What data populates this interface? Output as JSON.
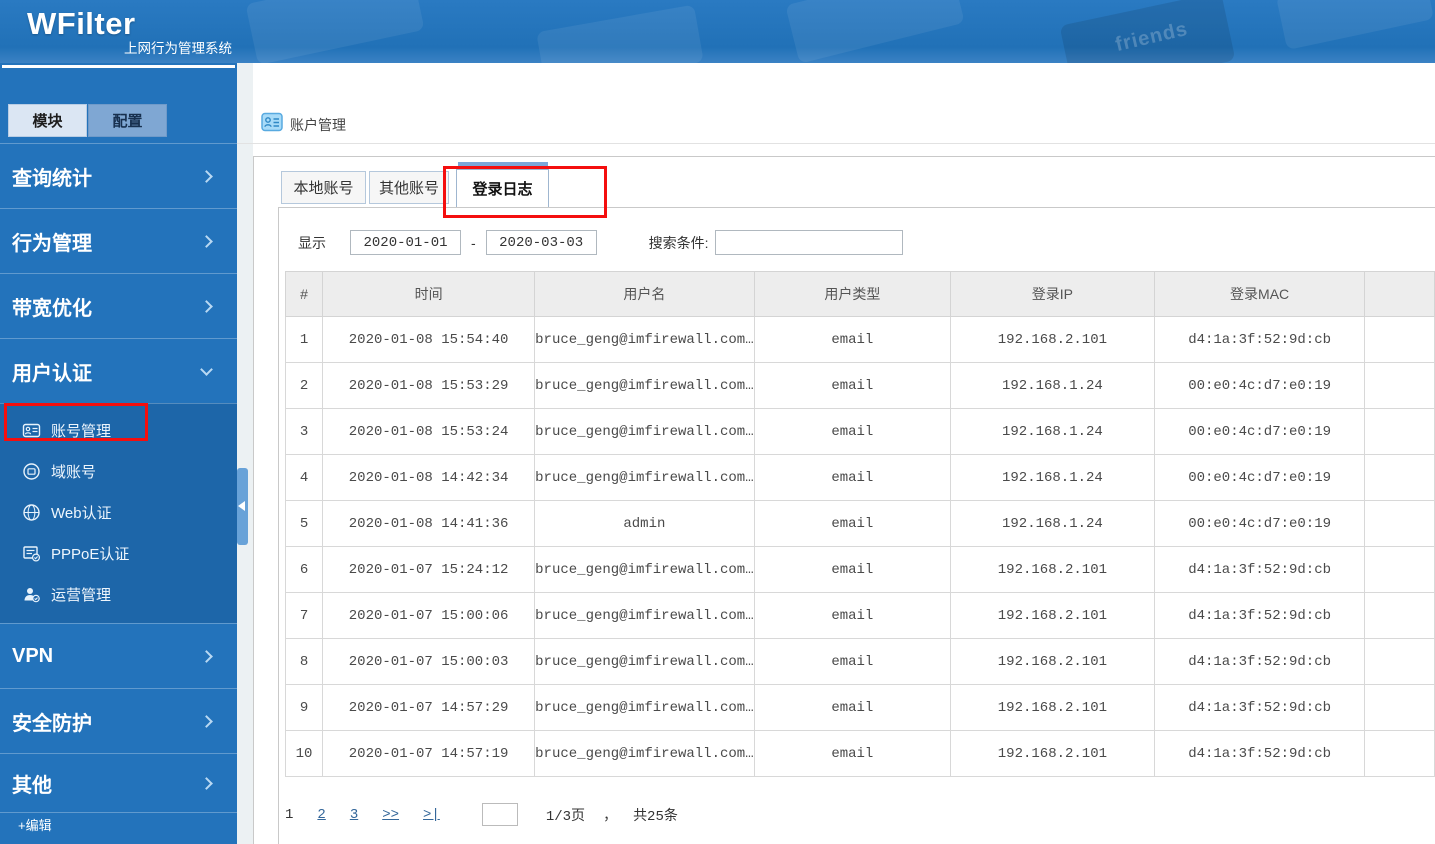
{
  "colors": {
    "accent_blue": "#2373BB",
    "submenu_blue": "#1D66A9",
    "annotation_red": "#F40E0E",
    "table_header_bg": "#EDEDED",
    "active_tab_bar": "#7AA7D9"
  },
  "header": {
    "logo": "WFilter",
    "subtitle": "上网行为管理系统",
    "decor_key_label": "friends"
  },
  "sidebar": {
    "tabs": [
      {
        "label": "模块"
      },
      {
        "label": "配置"
      }
    ],
    "menu": [
      {
        "label": "查询统计"
      },
      {
        "label": "行为管理"
      },
      {
        "label": "带宽优化"
      },
      {
        "label": "用户认证"
      },
      {
        "label": "VPN"
      },
      {
        "label": "安全防护"
      },
      {
        "label": "其他"
      }
    ],
    "submenu": [
      {
        "label": "账号管理"
      },
      {
        "label": "域账号"
      },
      {
        "label": "Web认证"
      },
      {
        "label": "PPPoE认证"
      },
      {
        "label": "运营管理"
      }
    ],
    "edit_label": "+编辑"
  },
  "breadcrumb": {
    "title": "账户管理"
  },
  "tabs": [
    {
      "label": "本地账号",
      "active": false
    },
    {
      "label": "其他账号",
      "active": false
    },
    {
      "label": "登录日志",
      "active": true
    }
  ],
  "filter": {
    "show_label": "显示",
    "date_from": "2020-01-01",
    "date_sep": "-",
    "date_to": "2020-03-03",
    "search_label": "搜索条件:",
    "search_value": ""
  },
  "table": {
    "columns": [
      "#",
      "时间",
      "用户名",
      "用户类型",
      "登录IP",
      "登录MAC"
    ],
    "col_keys": [
      "index",
      "time",
      "username",
      "usertype",
      "ip",
      "mac"
    ],
    "rows": [
      [
        "1",
        "2020-01-08 15:54:40",
        "bruce_geng@imfirewall.com…",
        "email",
        "192.168.2.101",
        "d4:1a:3f:52:9d:cb"
      ],
      [
        "2",
        "2020-01-08 15:53:29",
        "bruce_geng@imfirewall.com…",
        "email",
        "192.168.1.24",
        "00:e0:4c:d7:e0:19"
      ],
      [
        "3",
        "2020-01-08 15:53:24",
        "bruce_geng@imfirewall.com…",
        "email",
        "192.168.1.24",
        "00:e0:4c:d7:e0:19"
      ],
      [
        "4",
        "2020-01-08 14:42:34",
        "bruce_geng@imfirewall.com…",
        "email",
        "192.168.1.24",
        "00:e0:4c:d7:e0:19"
      ],
      [
        "5",
        "2020-01-08 14:41:36",
        "admin",
        "email",
        "192.168.1.24",
        "00:e0:4c:d7:e0:19"
      ],
      [
        "6",
        "2020-01-07 15:24:12",
        "bruce_geng@imfirewall.com…",
        "email",
        "192.168.2.101",
        "d4:1a:3f:52:9d:cb"
      ],
      [
        "7",
        "2020-01-07 15:00:06",
        "bruce_geng@imfirewall.com…",
        "email",
        "192.168.2.101",
        "d4:1a:3f:52:9d:cb"
      ],
      [
        "8",
        "2020-01-07 15:00:03",
        "bruce_geng@imfirewall.com…",
        "email",
        "192.168.2.101",
        "d4:1a:3f:52:9d:cb"
      ],
      [
        "9",
        "2020-01-07 14:57:29",
        "bruce_geng@imfirewall.com…",
        "email",
        "192.168.2.101",
        "d4:1a:3f:52:9d:cb"
      ],
      [
        "10",
        "2020-01-07 14:57:19",
        "bruce_geng@imfirewall.com…",
        "email",
        "192.168.2.101",
        "d4:1a:3f:52:9d:cb"
      ]
    ]
  },
  "pagination": {
    "current": "1",
    "page2": "2",
    "page3": "3",
    "next_label": ">>",
    "last_label": ">|",
    "page_info": "1/3页",
    "comma": "，",
    "total_info": "共25条"
  }
}
